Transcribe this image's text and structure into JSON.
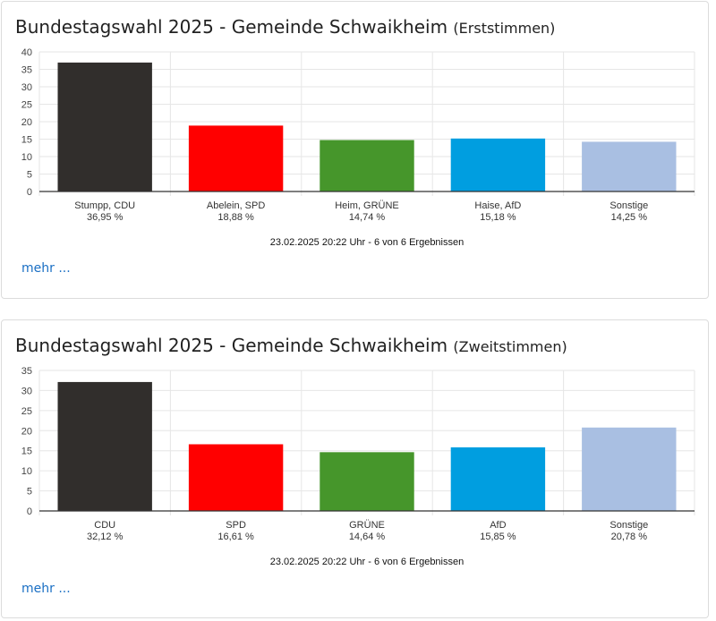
{
  "charts": [
    {
      "title_main": "Bundestagswahl 2025 - Gemeinde Schwaikheim",
      "title_sub": "(Erststimmen)",
      "footer": "23.02.2025 20:22 Uhr - 6 von 6 Ergebnissen",
      "more": "mehr ...",
      "chart_data": {
        "type": "bar",
        "categories": [
          "Stumpp, CDU",
          "Abelein, SPD",
          "Heim, GRÜNE",
          "Haise, AfD",
          "Sonstige"
        ],
        "values": [
          36.95,
          18.88,
          14.74,
          15.18,
          14.25
        ],
        "value_labels": [
          "36,95 %",
          "18,88 %",
          "14,74 %",
          "15,18 %",
          "14,25 %"
        ],
        "colors": [
          "#312e2c",
          "#ff0000",
          "#46962b",
          "#009ee0",
          "#a9bfe2"
        ],
        "ylim": [
          0,
          40
        ],
        "yticks": [
          0,
          5,
          10,
          15,
          20,
          25,
          30,
          35,
          40
        ],
        "grid": true
      }
    },
    {
      "title_main": "Bundestagswahl 2025 - Gemeinde Schwaikheim",
      "title_sub": "(Zweitstimmen)",
      "footer": "23.02.2025 20:22 Uhr - 6 von 6 Ergebnissen",
      "more": "mehr ...",
      "chart_data": {
        "type": "bar",
        "categories": [
          "CDU",
          "SPD",
          "GRÜNE",
          "AfD",
          "Sonstige"
        ],
        "values": [
          32.12,
          16.61,
          14.64,
          15.85,
          20.78
        ],
        "value_labels": [
          "32,12 %",
          "16,61 %",
          "14,64 %",
          "15,85 %",
          "20,78 %"
        ],
        "colors": [
          "#312e2c",
          "#ff0000",
          "#46962b",
          "#009ee0",
          "#a9bfe2"
        ],
        "ylim": [
          0,
          35
        ],
        "yticks": [
          0,
          5,
          10,
          15,
          20,
          25,
          30,
          35
        ],
        "grid": true
      }
    }
  ]
}
